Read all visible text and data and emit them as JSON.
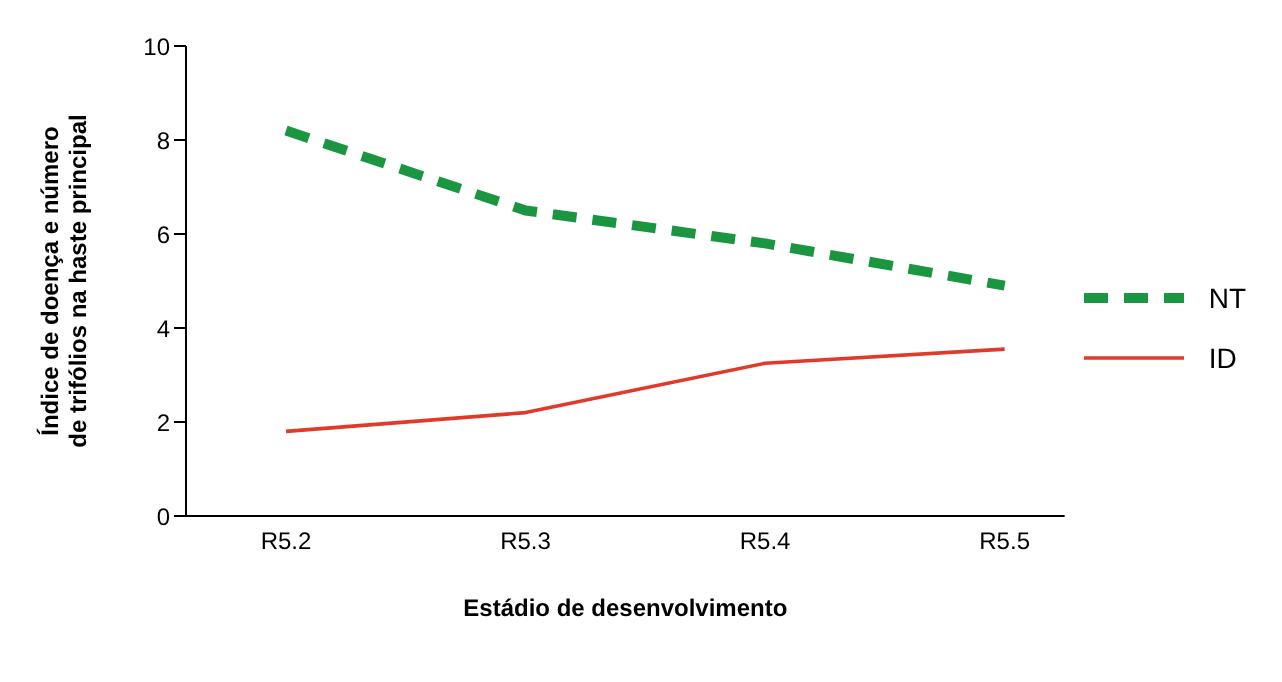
{
  "chart_data": {
    "type": "line",
    "xlabel": "Estádio de desenvolvimento",
    "ylabel": "Índice de doença e número\nde trifólios na haste principal",
    "categories": [
      "R5.2",
      "R5.3",
      "R5.4",
      "R5.5"
    ],
    "series": [
      {
        "name": "NT",
        "color": "#1a9641",
        "line_style": "dashed",
        "values": [
          8.2,
          6.5,
          5.8,
          4.9
        ]
      },
      {
        "name": "ID",
        "color": "#e03a2a",
        "line_style": "solid",
        "values": [
          1.8,
          2.2,
          3.25,
          3.55
        ]
      }
    ],
    "ylim": [
      0,
      10
    ],
    "yticks": [
      0,
      2,
      4,
      6,
      8,
      10
    ],
    "grid": false,
    "legend": "right",
    "marker": "none"
  }
}
